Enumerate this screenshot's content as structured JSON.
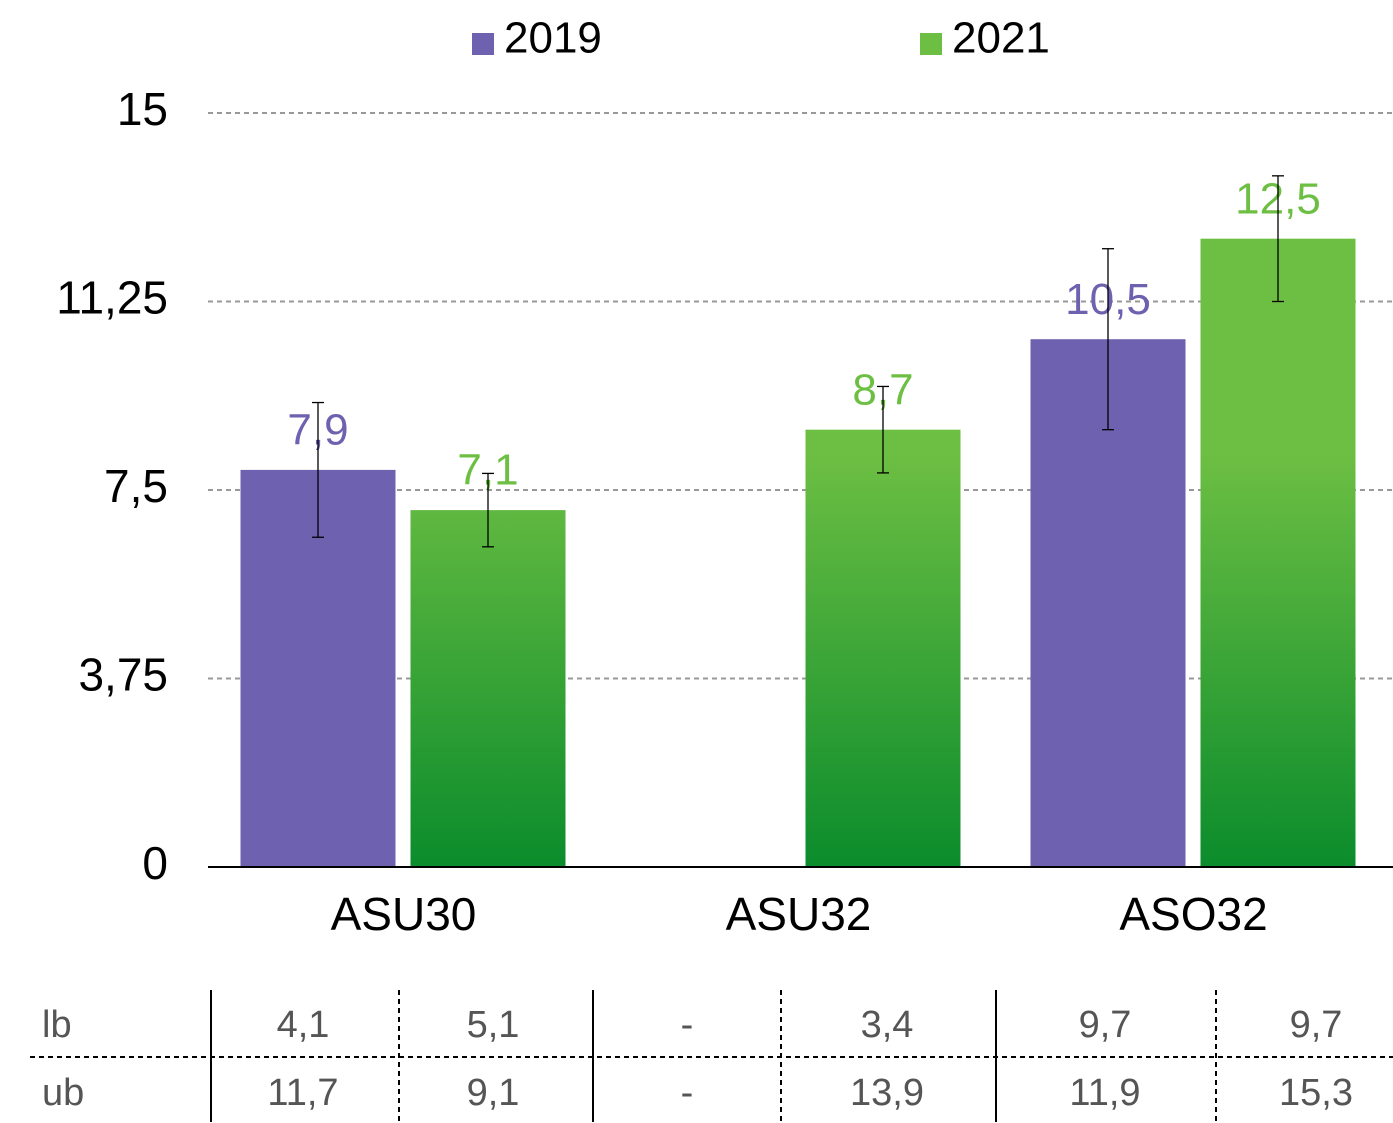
{
  "chart_data": {
    "type": "bar",
    "categories": [
      "ASU30",
      "ASU32",
      "ASO32"
    ],
    "series": [
      {
        "name": "2019",
        "color": "#6e62b0",
        "values": [
          7.9,
          null,
          10.5
        ],
        "value_labels": [
          "7,9",
          null,
          "10,5"
        ],
        "errors": [
          1.34,
          null,
          1.8
        ]
      },
      {
        "name": "2021",
        "color": "#6dbf43",
        "gradient_end": "#0b8c2c",
        "values": [
          7.1,
          8.7,
          12.5
        ],
        "value_labels": [
          "7,1",
          "8,7",
          "12,5"
        ],
        "errors": [
          0.73,
          0.86,
          1.25
        ]
      }
    ],
    "ylim": [
      0,
      15
    ],
    "yticks": [
      0,
      {
        "value": 3.75,
        "label": "3,75"
      },
      {
        "value": 7.5,
        "label": "7,5"
      },
      {
        "value": 11.25,
        "label": "11,25"
      },
      15
    ],
    "grid": true,
    "legend": "top"
  },
  "table": {
    "rows": [
      [
        "lb",
        "4,1",
        "5,1",
        "-",
        "3,4",
        "9,7",
        "9,7"
      ],
      [
        "ub",
        "11,7",
        "9,1",
        "-",
        "13,9",
        "11,9",
        "15,3"
      ]
    ]
  }
}
